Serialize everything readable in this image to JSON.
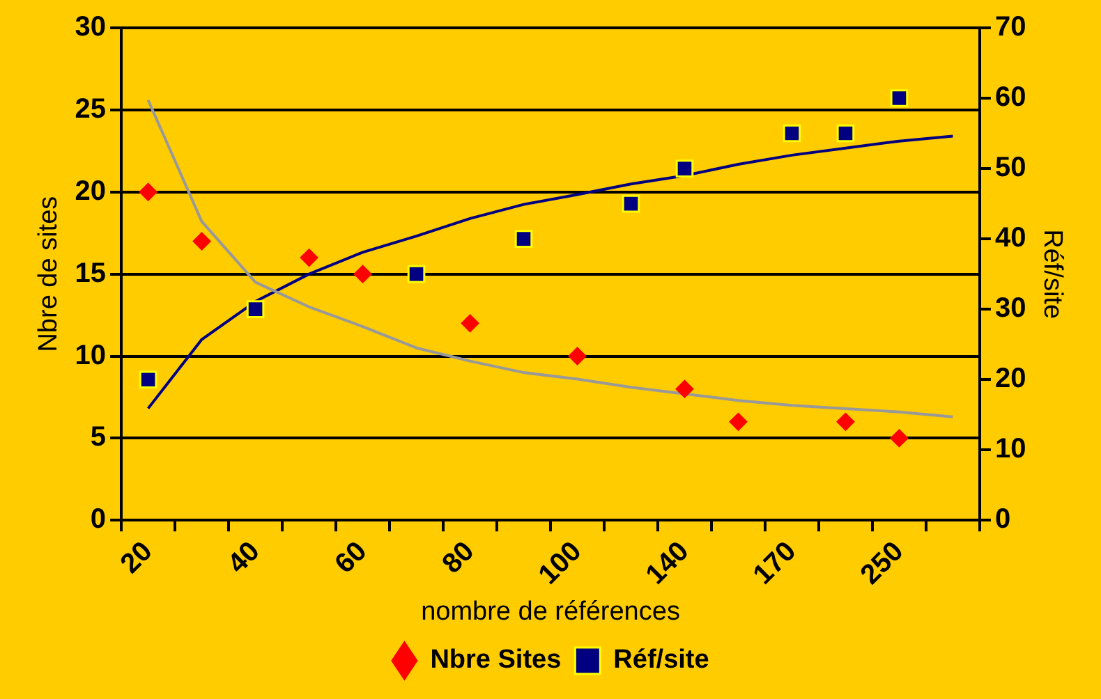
{
  "chart_data": {
    "type": "line",
    "xlabel": "nombre de références",
    "ylabel": "Nbre de sites",
    "y2label": "Réf/site",
    "categories": [
      "20",
      null,
      "40",
      null,
      "60",
      null,
      "80",
      null,
      "100",
      null,
      "140",
      null,
      "170",
      null,
      "250",
      null
    ],
    "series": [
      {
        "name": "Nbre Sites",
        "type": "scatter",
        "marker": "diamond",
        "color": "#ff0000",
        "values": [
          20,
          17,
          null,
          16,
          15,
          null,
          12,
          null,
          10,
          null,
          8,
          6,
          null,
          6,
          5,
          null
        ]
      },
      {
        "name": "Réf/site",
        "type": "scatter",
        "marker": "square",
        "axis": "y2",
        "color": "#000080",
        "values": [
          20,
          null,
          30,
          null,
          null,
          35,
          null,
          40,
          null,
          45,
          50,
          null,
          55,
          55,
          60,
          null
        ]
      },
      {
        "marker": "none",
        "color": "#999999",
        "values": [
          25.6,
          18.2,
          14.5,
          13.0,
          11.8,
          10.5,
          9.7,
          9.0,
          8.6,
          8.1,
          7.7,
          7.3,
          7.0,
          6.8,
          6.6,
          6.3
        ]
      },
      {
        "marker": "none",
        "axis": "y2",
        "color": "#000080",
        "values": [
          15.9,
          25.7,
          31.1,
          35.0,
          38.1,
          40.4,
          42.9,
          44.9,
          46.3,
          47.8,
          49.0,
          50.6,
          51.9,
          52.9,
          53.9,
          54.6
        ]
      }
    ],
    "ylim": [
      0,
      30
    ],
    "yticks": [
      0,
      5,
      10,
      15,
      20,
      25,
      30
    ],
    "y2lim": [
      0,
      70
    ],
    "y2ticks": [
      0,
      10,
      20,
      30,
      40,
      50,
      60,
      70
    ],
    "grid": "y",
    "legend": "bottom"
  }
}
